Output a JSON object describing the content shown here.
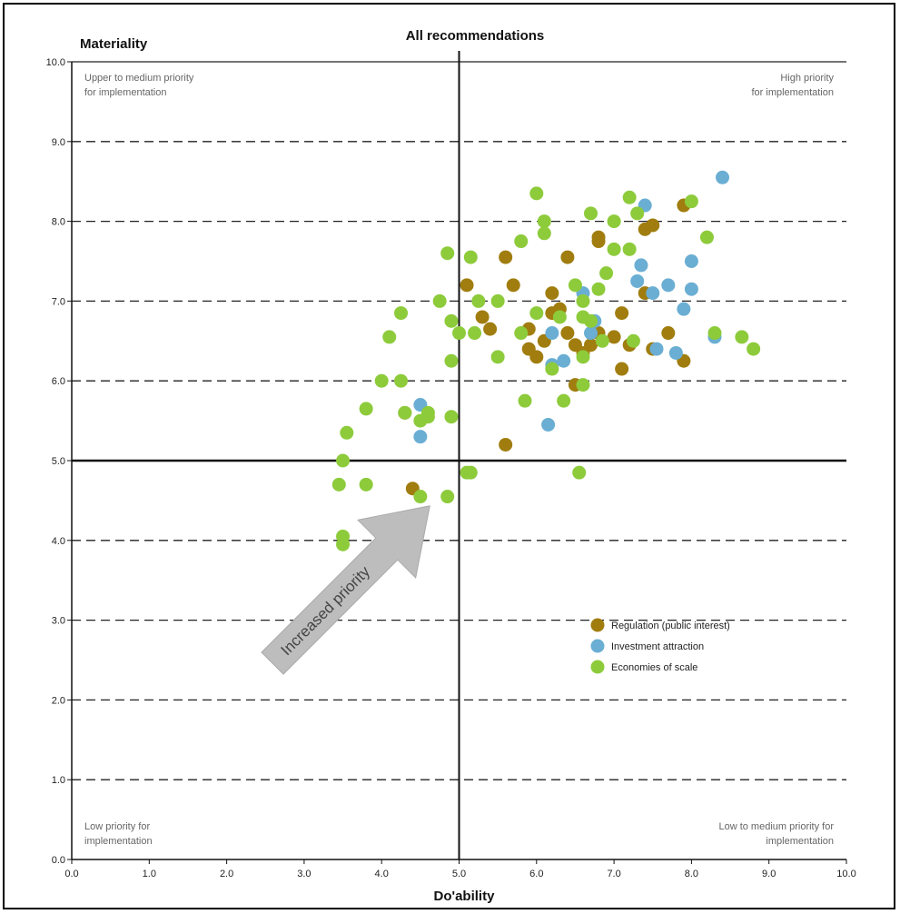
{
  "chart_data": {
    "type": "scatter",
    "title": "All recommendations",
    "ylabel": "Materiality",
    "xlabel": "Do'ability",
    "xlim": [
      0,
      10
    ],
    "ylim": [
      0,
      10
    ],
    "x_ticks": [
      "0.0",
      "1.0",
      "2.0",
      "3.0",
      "4.0",
      "5.0",
      "6.0",
      "7.0",
      "8.0",
      "9.0",
      "10.0"
    ],
    "y_ticks": [
      "0.0",
      "1.0",
      "2.0",
      "3.0",
      "4.0",
      "5.0",
      "6.0",
      "7.0",
      "8.0",
      "9.0",
      "10.0"
    ],
    "grid": "horizontal dashed",
    "divider": {
      "x": 5.0,
      "y": 5.0
    },
    "quadrant_labels": {
      "top_left": [
        "Upper to medium priority",
        "for implementation"
      ],
      "top_right": [
        "High priority",
        "for implementation"
      ],
      "bottom_left": [
        "Low priority for",
        "implementation"
      ],
      "bottom_right": [
        "Low to medium priority for",
        "implementation"
      ]
    },
    "arrow_label": "Increased priority",
    "legend_position": "lower-right",
    "series": [
      {
        "name": "Regulation (public interest)",
        "color": "#a07d0e",
        "points": [
          [
            5.1,
            7.2
          ],
          [
            5.3,
            6.8
          ],
          [
            5.4,
            6.65
          ],
          [
            5.6,
            7.55
          ],
          [
            5.7,
            7.2
          ],
          [
            5.6,
            5.2
          ],
          [
            5.9,
            6.4
          ],
          [
            5.9,
            6.65
          ],
          [
            6.0,
            6.3
          ],
          [
            6.1,
            6.5
          ],
          [
            6.2,
            7.1
          ],
          [
            6.2,
            6.85
          ],
          [
            6.3,
            6.9
          ],
          [
            6.4,
            7.55
          ],
          [
            6.4,
            6.6
          ],
          [
            6.5,
            6.45
          ],
          [
            6.5,
            5.95
          ],
          [
            6.6,
            6.35
          ],
          [
            6.7,
            6.45
          ],
          [
            6.8,
            7.8
          ],
          [
            6.8,
            7.75
          ],
          [
            6.8,
            6.6
          ],
          [
            7.0,
            6.55
          ],
          [
            7.1,
            6.15
          ],
          [
            7.1,
            6.85
          ],
          [
            7.2,
            6.45
          ],
          [
            7.4,
            7.1
          ],
          [
            7.4,
            7.9
          ],
          [
            7.5,
            7.95
          ],
          [
            7.5,
            6.4
          ],
          [
            7.7,
            6.6
          ],
          [
            7.9,
            8.2
          ],
          [
            7.9,
            6.25
          ],
          [
            4.3,
            5.6
          ],
          [
            4.4,
            4.65
          ]
        ]
      },
      {
        "name": "Investment attraction",
        "color": "#6aaed3",
        "points": [
          [
            8.4,
            8.55
          ],
          [
            7.4,
            8.2
          ],
          [
            7.35,
            7.45
          ],
          [
            7.3,
            7.25
          ],
          [
            7.5,
            7.1
          ],
          [
            7.7,
            7.2
          ],
          [
            8.0,
            7.5
          ],
          [
            8.0,
            7.15
          ],
          [
            7.9,
            6.9
          ],
          [
            8.3,
            6.55
          ],
          [
            7.8,
            6.35
          ],
          [
            7.55,
            6.4
          ],
          [
            6.75,
            6.75
          ],
          [
            6.7,
            6.6
          ],
          [
            6.6,
            7.1
          ],
          [
            6.2,
            6.6
          ],
          [
            6.2,
            6.2
          ],
          [
            6.35,
            6.25
          ],
          [
            6.15,
            5.45
          ],
          [
            4.5,
            5.7
          ],
          [
            4.5,
            5.3
          ]
        ]
      },
      {
        "name": "Economies of scale",
        "color": "#8dcb3b",
        "points": [
          [
            6.0,
            8.35
          ],
          [
            6.1,
            8.0
          ],
          [
            6.1,
            7.85
          ],
          [
            5.8,
            7.75
          ],
          [
            6.7,
            8.1
          ],
          [
            7.2,
            8.3
          ],
          [
            7.3,
            8.1
          ],
          [
            8.0,
            8.25
          ],
          [
            7.0,
            8.0
          ],
          [
            7.2,
            7.65
          ],
          [
            7.0,
            7.65
          ],
          [
            6.9,
            7.35
          ],
          [
            6.8,
            7.15
          ],
          [
            6.5,
            7.2
          ],
          [
            6.6,
            7.0
          ],
          [
            6.6,
            6.8
          ],
          [
            6.7,
            6.75
          ],
          [
            6.3,
            6.8
          ],
          [
            6.0,
            6.85
          ],
          [
            5.8,
            6.6
          ],
          [
            5.5,
            7.0
          ],
          [
            5.25,
            7.0
          ],
          [
            5.2,
            6.6
          ],
          [
            5.5,
            6.3
          ],
          [
            5.15,
            7.55
          ],
          [
            4.85,
            7.6
          ],
          [
            4.75,
            7.0
          ],
          [
            4.9,
            6.75
          ],
          [
            4.9,
            6.25
          ],
          [
            5.0,
            6.6
          ],
          [
            4.25,
            6.85
          ],
          [
            4.1,
            6.55
          ],
          [
            4.25,
            6.0
          ],
          [
            4.0,
            6.0
          ],
          [
            3.8,
            5.65
          ],
          [
            4.3,
            5.6
          ],
          [
            4.5,
            5.5
          ],
          [
            4.6,
            5.6
          ],
          [
            4.6,
            5.55
          ],
          [
            4.9,
            5.55
          ],
          [
            3.55,
            5.35
          ],
          [
            3.5,
            5.0
          ],
          [
            3.45,
            4.7
          ],
          [
            3.8,
            4.7
          ],
          [
            4.5,
            4.55
          ],
          [
            4.85,
            4.55
          ],
          [
            5.1,
            4.85
          ],
          [
            5.15,
            4.85
          ],
          [
            3.5,
            4.05
          ],
          [
            3.5,
            3.95
          ],
          [
            5.85,
            5.75
          ],
          [
            6.35,
            5.75
          ],
          [
            6.6,
            5.95
          ],
          [
            6.55,
            4.85
          ],
          [
            6.6,
            6.3
          ],
          [
            6.85,
            6.5
          ],
          [
            6.2,
            6.15
          ],
          [
            7.25,
            6.5
          ],
          [
            8.2,
            7.8
          ],
          [
            8.3,
            6.6
          ],
          [
            8.65,
            6.55
          ],
          [
            8.8,
            6.4
          ]
        ]
      }
    ]
  }
}
